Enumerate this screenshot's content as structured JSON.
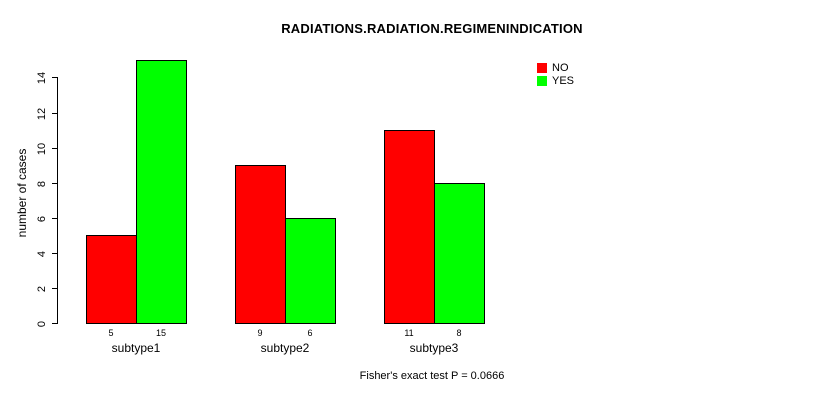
{
  "title": "RADIATIONS.RADIATION.REGIMENINDICATION",
  "caption": "Fisher's exact test P = 0.0666",
  "y_axis": {
    "label": "number of cases",
    "ticks": [
      0,
      2,
      4,
      6,
      8,
      10,
      12,
      14
    ]
  },
  "legend": {
    "items": [
      {
        "label": "NO",
        "color": "#FF0000"
      },
      {
        "label": "YES",
        "color": "#00FF00"
      }
    ]
  },
  "chart_data": {
    "type": "bar",
    "categories": [
      "subtype1",
      "subtype2",
      "subtype3"
    ],
    "series": [
      {
        "name": "NO",
        "color": "#FF0000",
        "values": [
          5,
          9,
          11
        ]
      },
      {
        "name": "YES",
        "color": "#00FF00",
        "values": [
          15,
          6,
          8
        ]
      }
    ],
    "title": "RADIATIONS.RADIATION.REGIMENINDICATION",
    "xlabel": "",
    "ylabel": "number of cases",
    "ylim": [
      0,
      15
    ],
    "y_ticks": [
      0,
      2,
      4,
      6,
      8,
      10,
      12,
      14
    ],
    "grid": false,
    "grouped": true,
    "bar_border_color": "#000000",
    "bar_value_labels_shown": true,
    "legend_position": "top-right",
    "annotation": "Fisher's exact test P = 0.0666"
  }
}
